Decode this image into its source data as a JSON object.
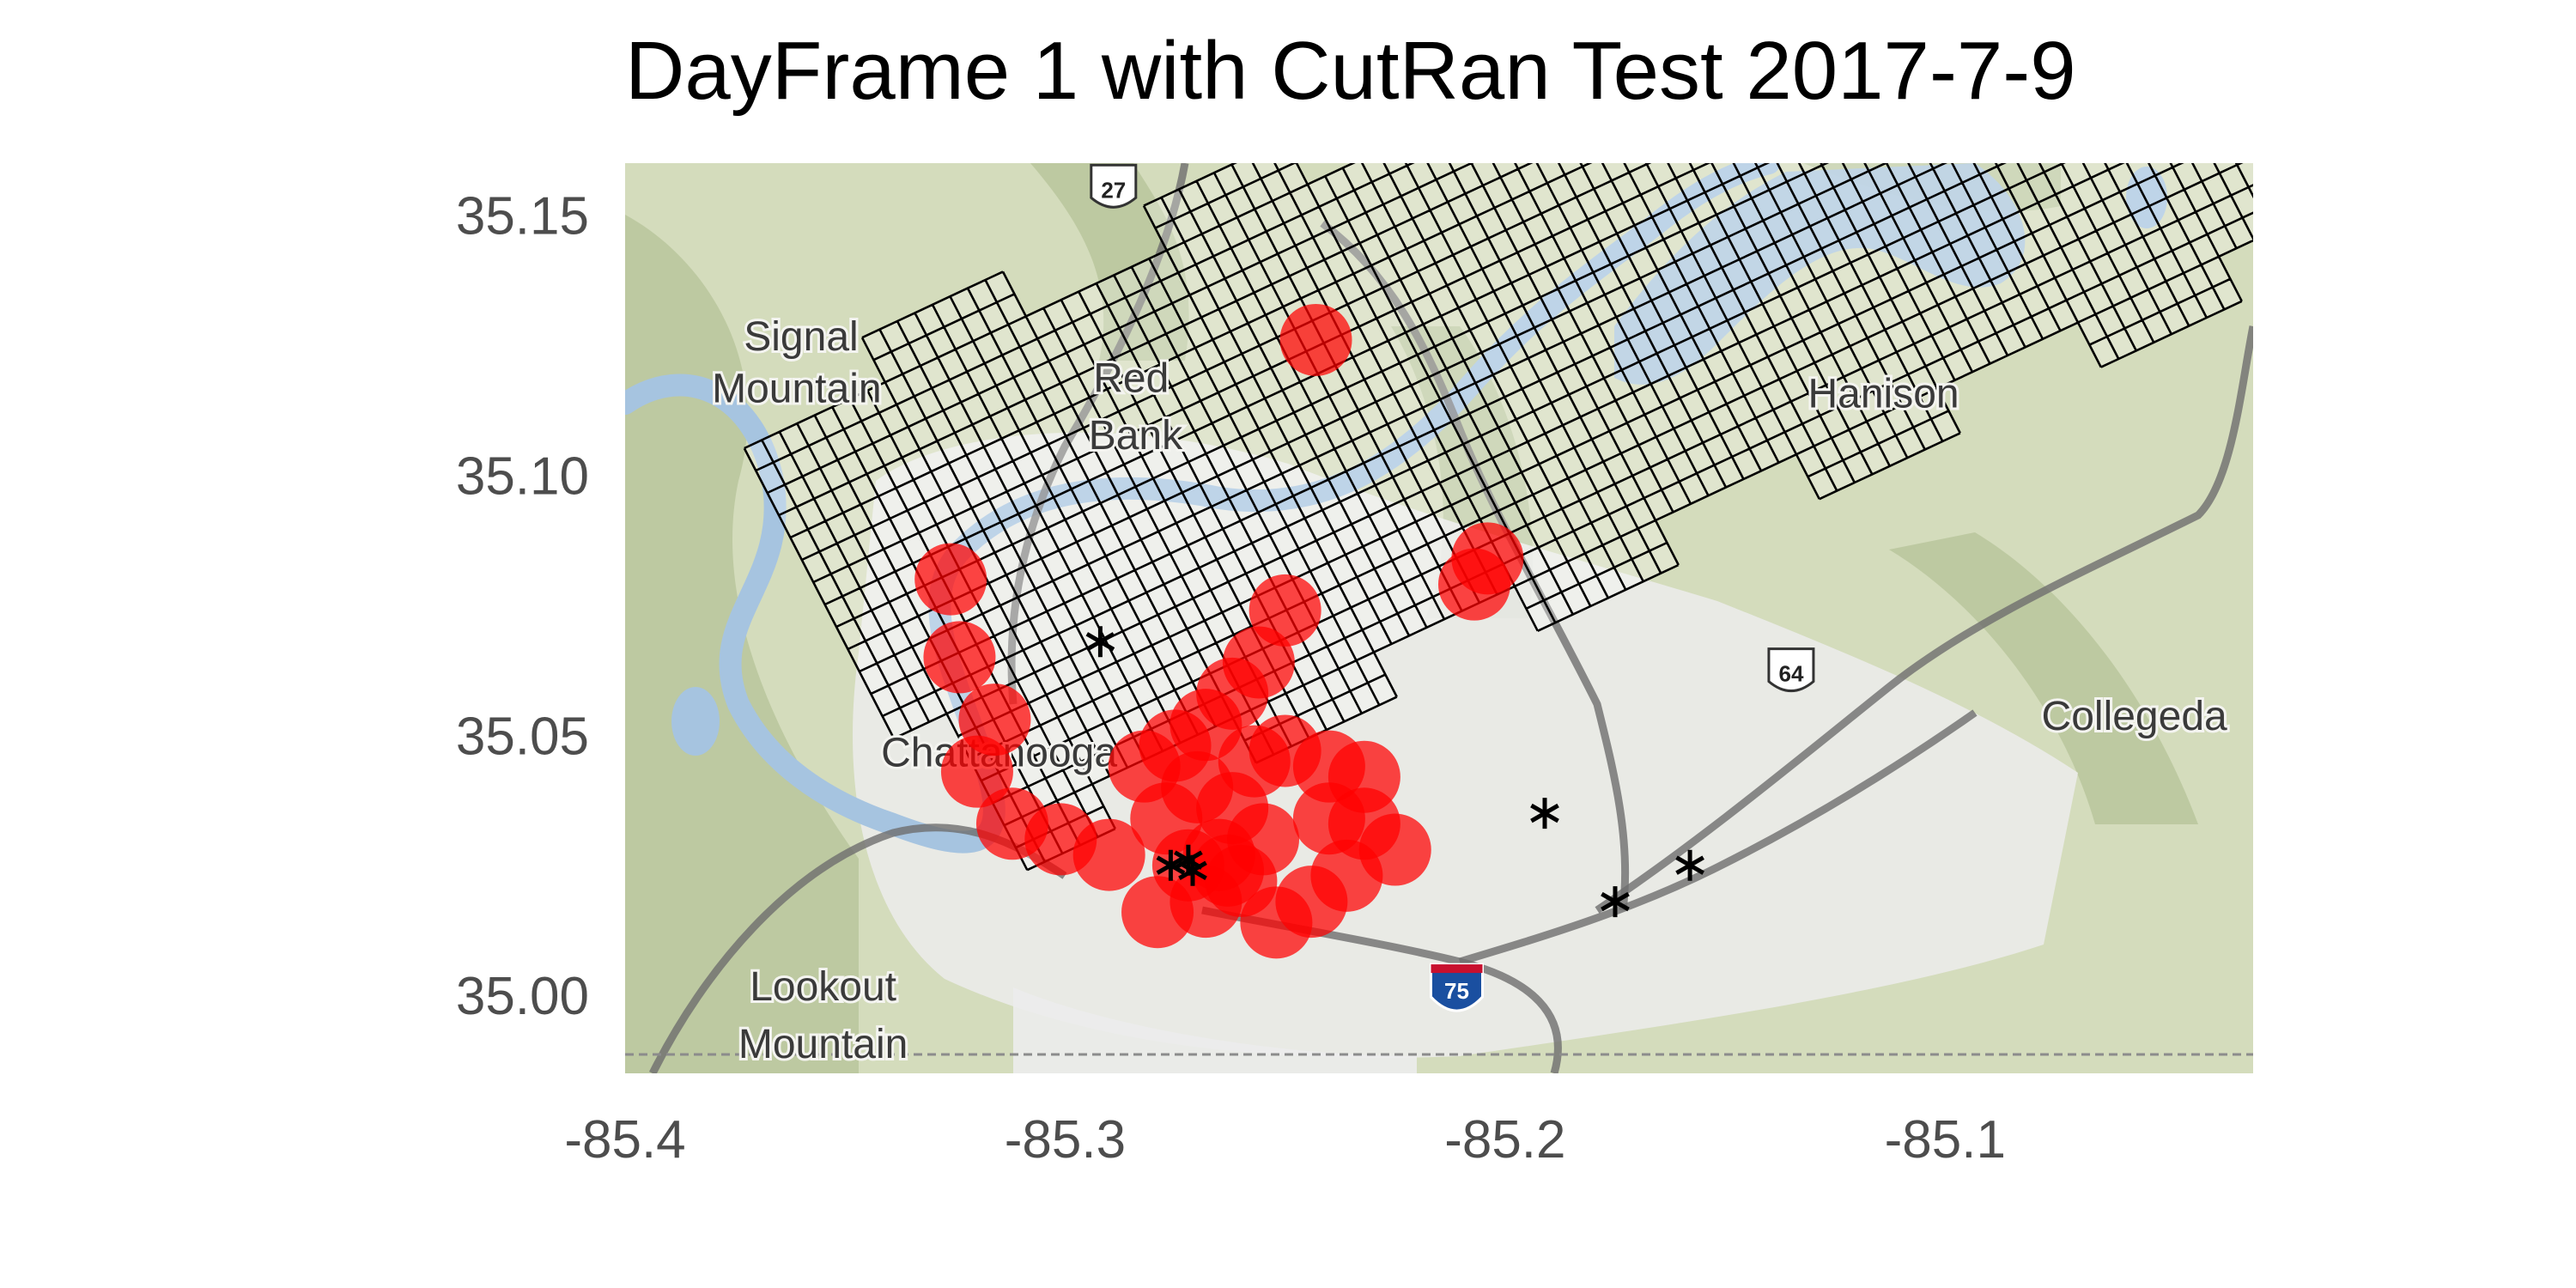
{
  "title": "DayFrame 1 with CutRan Test 2017-7-9",
  "colors": {
    "point": "#ff0000",
    "grid_line": "#000000",
    "land": "#d4dcbc",
    "land_dark": "#a9b98a",
    "urban": "#ececec",
    "water": "#a6c4e0",
    "road": "#6e6e6e",
    "interstate_shield": "#1a4fa0",
    "axis_text": "#4d4d4d"
  },
  "chart_data": {
    "type": "scatter",
    "title": "DayFrame 1 with CutRan Test 2017-7-9",
    "xlim": [
      -85.4,
      -85.03
    ],
    "ylim": [
      34.985,
      35.16
    ],
    "x_ticks": [
      -85.4,
      -85.3,
      -85.2,
      -85.1
    ],
    "x_tick_labels": [
      "-85.4",
      "-85.3",
      "-85.2",
      "-85.1"
    ],
    "y_ticks": [
      35.0,
      35.05,
      35.1,
      35.15
    ],
    "y_tick_labels": [
      "35.00",
      "35.05",
      "35.10",
      "35.15"
    ],
    "basemap": "terrain",
    "grid_overlay": true,
    "series": [
      {
        "marker": "circle",
        "color": "#ff0000",
        "points": [
          [
            -85.243,
            35.126
          ],
          [
            -85.204,
            35.084
          ],
          [
            -85.207,
            35.079
          ],
          [
            -85.326,
            35.08
          ],
          [
            -85.324,
            35.065
          ],
          [
            -85.316,
            35.053
          ],
          [
            -85.32,
            35.043
          ],
          [
            -85.312,
            35.033
          ],
          [
            -85.301,
            35.03
          ],
          [
            -85.29,
            35.027
          ],
          [
            -85.279,
            35.016
          ],
          [
            -85.268,
            35.018
          ],
          [
            -85.26,
            35.022
          ],
          [
            -85.252,
            35.014
          ],
          [
            -85.244,
            35.018
          ],
          [
            -85.236,
            35.023
          ],
          [
            -85.24,
            35.034
          ],
          [
            -85.232,
            35.033
          ],
          [
            -85.24,
            35.044
          ],
          [
            -85.232,
            35.042
          ],
          [
            -85.225,
            35.028
          ],
          [
            -85.25,
            35.047
          ],
          [
            -85.262,
            35.036
          ],
          [
            -85.255,
            35.03
          ],
          [
            -85.27,
            35.04
          ],
          [
            -85.277,
            35.034
          ],
          [
            -85.282,
            35.044
          ],
          [
            -85.275,
            35.048
          ],
          [
            -85.268,
            35.052
          ],
          [
            -85.262,
            35.058
          ],
          [
            -85.256,
            35.064
          ],
          [
            -85.25,
            35.074
          ],
          [
            -85.257,
            35.045
          ],
          [
            -85.265,
            35.027
          ],
          [
            -85.272,
            35.025
          ],
          [
            -85.263,
            35.024
          ]
        ]
      },
      {
        "marker": "asterisk",
        "color": "#000000",
        "points": [
          [
            -85.292,
            35.068
          ],
          [
            -85.272,
            35.026
          ],
          [
            -85.276,
            35.025
          ],
          [
            -85.271,
            35.024
          ],
          [
            -85.191,
            35.035
          ],
          [
            -85.158,
            35.025
          ],
          [
            -85.175,
            35.018
          ]
        ]
      }
    ]
  },
  "map": {
    "place_labels": [
      {
        "text": "Signal",
        "lon": -85.36,
        "lat": 35.124
      },
      {
        "text": "Mountain",
        "lon": -85.361,
        "lat": 35.114
      },
      {
        "text": "Red",
        "lon": -85.285,
        "lat": 35.116
      },
      {
        "text": "Bank",
        "lon": -85.284,
        "lat": 35.105
      },
      {
        "text": "Hanison",
        "lon": -85.114,
        "lat": 35.113
      },
      {
        "text": "Chattanooga",
        "lon": -85.315,
        "lat": 35.044
      },
      {
        "text": "Collegeda",
        "lon": -85.057,
        "lat": 35.051
      },
      {
        "text": "Lookout",
        "lon": -85.355,
        "lat": 34.999
      },
      {
        "text": "Mountain",
        "lon": -85.355,
        "lat": 34.988
      }
    ],
    "shields": [
      {
        "text": "27",
        "lon": -85.289,
        "lat": 35.155,
        "kind": "us-route"
      },
      {
        "text": "75",
        "lon": -85.211,
        "lat": 35.001,
        "kind": "interstate"
      },
      {
        "text": "64",
        "lon": -85.135,
        "lat": 35.062,
        "kind": "us-route"
      }
    ]
  }
}
